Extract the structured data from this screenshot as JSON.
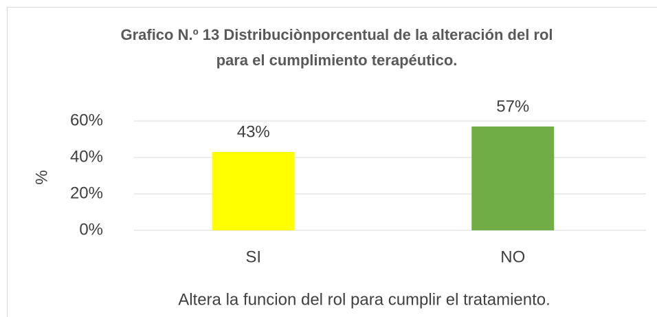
{
  "chart_data": {
    "type": "bar",
    "title": "Grafico N.º 13 Distribuciònporcentual de la alteración del rol para el cumplimiento terapéutico.",
    "categories": [
      "SI",
      "NO"
    ],
    "values": [
      43,
      57
    ],
    "value_labels": [
      "43%",
      "57%"
    ],
    "colors": [
      "#ffff00",
      "#70ad47"
    ],
    "ylim": [
      0,
      60
    ],
    "yticks": [
      {
        "value": 0,
        "label": "0%"
      },
      {
        "value": 20,
        "label": "20%"
      },
      {
        "value": 40,
        "label": "40%"
      },
      {
        "value": 60,
        "label": "60%"
      }
    ],
    "ylabel": "%",
    "xlabel": "Altera la funcion del rol para cumplir el tratamiento.",
    "grid": true
  }
}
